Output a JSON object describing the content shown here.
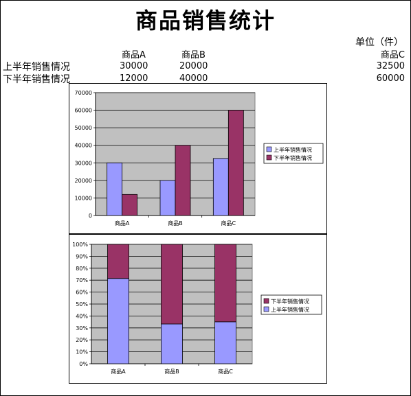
{
  "sheet": {
    "title": "商品销售统计",
    "unit_label": "单位（件）",
    "columns": [
      "商品A",
      "商品B",
      "商品C"
    ],
    "rows": [
      {
        "label": "上半年销售情况",
        "values": [
          "30000",
          "20000",
          "32500"
        ]
      },
      {
        "label": "下半年销售情况",
        "values": [
          "12000",
          "40000",
          "60000"
        ]
      }
    ]
  },
  "colors": {
    "series1": "#9999ff",
    "series2": "#993366",
    "plot_bg": "#c0c0c0"
  },
  "chart_data": [
    {
      "type": "bar",
      "categories": [
        "商品A",
        "商品B",
        "商品C"
      ],
      "series": [
        {
          "name": "上半年销售情况",
          "values": [
            30000,
            20000,
            32500
          ]
        },
        {
          "name": "下半年销售情况",
          "values": [
            12000,
            40000,
            60000
          ]
        }
      ],
      "ylim": [
        0,
        70000
      ],
      "yticks": [
        "0",
        "10000",
        "20000",
        "30000",
        "40000",
        "50000",
        "60000",
        "70000"
      ],
      "grid": true,
      "legend": [
        "上半年销售情况",
        "下半年销售情况"
      ],
      "legend_position": "right"
    },
    {
      "type": "bar",
      "stacking": "percent",
      "categories": [
        "商品A",
        "商品B",
        "商品C"
      ],
      "series": [
        {
          "name": "上半年销售情况",
          "values": [
            30000,
            20000,
            32500
          ]
        },
        {
          "name": "下半年销售情况",
          "values": [
            12000,
            40000,
            60000
          ]
        }
      ],
      "ylim": [
        0,
        100
      ],
      "yticks": [
        "0%",
        "10%",
        "20%",
        "30%",
        "40%",
        "50%",
        "60%",
        "70%",
        "80%",
        "90%",
        "100%"
      ],
      "grid": true,
      "legend": [
        "下半年销售情况",
        "上半年销售情况"
      ],
      "legend_position": "right"
    }
  ]
}
